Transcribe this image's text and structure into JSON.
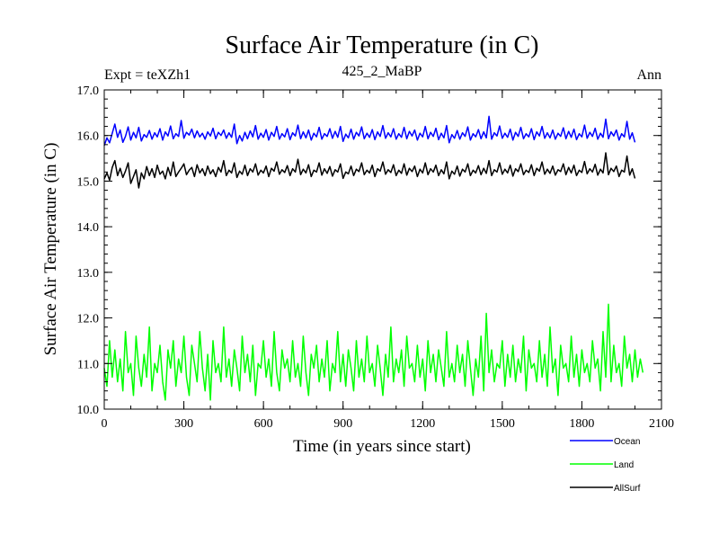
{
  "chart_data": {
    "type": "line",
    "title": "Surface Air Temperature (in C)",
    "subtitle_left": "Expt = teXZh1",
    "subtitle_center": "425_2_MaBP",
    "subtitle_right": "Ann",
    "xlabel": "Time (in years since start)",
    "ylabel": "Surface Air Temperature (in C)",
    "xlim": [
      0,
      2100
    ],
    "ylim": [
      10.0,
      17.0
    ],
    "x_major_ticks": [
      0,
      300,
      600,
      900,
      1200,
      1500,
      1800,
      2100
    ],
    "x_tick_labels": [
      "0",
      "300",
      "600",
      "900",
      "1200",
      "1500",
      "1800",
      "2100"
    ],
    "y_major_ticks": [
      10.0,
      11.0,
      12.0,
      13.0,
      14.0,
      15.0,
      16.0,
      17.0
    ],
    "y_tick_labels": [
      "10.0",
      "11.0",
      "12.0",
      "13.0",
      "14.0",
      "15.0",
      "16.0",
      "17.0"
    ],
    "x_minor_step": 100,
    "y_minor_step": 0.2,
    "grid": false,
    "legend_position": "bottom-right",
    "series": [
      {
        "name": "Ocean",
        "color": "#0000ff",
        "x_start": 0,
        "x_step": 10,
        "values": [
          15.78,
          15.95,
          15.84,
          16.05,
          16.25,
          15.96,
          16.12,
          15.85,
          15.98,
          16.19,
          15.9,
          16.07,
          15.95,
          16.18,
          15.88,
          16.02,
          15.96,
          16.11,
          15.92,
          16.06,
          15.97,
          16.15,
          15.9,
          16.08,
          15.99,
          16.21,
          15.93,
          16.04,
          15.98,
          16.33,
          15.94,
          16.07,
          16.01,
          16.14,
          15.95,
          16.1,
          15.97,
          16.05,
          15.92,
          16.08,
          15.99,
          16.16,
          15.93,
          16.07,
          16.0,
          16.12,
          15.94,
          16.06,
          15.96,
          16.25,
          15.82,
          16.0,
          15.88,
          16.07,
          15.93,
          16.1,
          15.97,
          16.22,
          15.92,
          16.05,
          15.96,
          16.13,
          15.9,
          16.07,
          15.98,
          16.2,
          15.92,
          16.04,
          15.97,
          16.15,
          15.91,
          16.06,
          15.99,
          16.23,
          15.93,
          16.08,
          15.95,
          16.12,
          15.9,
          16.05,
          15.97,
          16.18,
          15.92,
          16.04,
          15.98,
          16.15,
          15.94,
          16.09,
          15.96,
          16.2,
          15.87,
          16.03,
          15.95,
          16.14,
          15.92,
          16.07,
          15.99,
          16.19,
          15.93,
          16.05,
          15.96,
          16.13,
          15.91,
          16.08,
          15.98,
          16.22,
          15.94,
          16.06,
          15.97,
          16.15,
          15.92,
          16.04,
          15.96,
          16.18,
          15.93,
          16.09,
          15.99,
          16.12,
          15.9,
          16.05,
          15.97,
          16.2,
          15.93,
          16.07,
          15.98,
          16.16,
          15.91,
          16.05,
          15.95,
          16.22,
          15.84,
          16.02,
          15.94,
          16.11,
          15.92,
          16.06,
          15.98,
          16.19,
          15.9,
          16.04,
          15.97,
          16.13,
          15.93,
          16.08,
          15.95,
          16.42,
          15.92,
          16.06,
          15.99,
          16.21,
          15.94,
          16.05,
          15.96,
          16.14,
          15.9,
          16.07,
          15.98,
          16.18,
          15.93,
          16.04,
          15.97,
          16.15,
          15.91,
          16.08,
          15.99,
          16.2,
          15.94,
          16.06,
          15.95,
          16.12,
          15.92,
          16.05,
          15.98,
          16.17,
          15.93,
          16.09,
          15.96,
          16.14,
          15.91,
          16.04,
          15.97,
          16.23,
          15.94,
          16.07,
          15.98,
          16.16,
          15.92,
          16.05,
          15.96,
          16.36,
          15.93,
          16.08,
          15.99,
          16.12,
          15.9,
          16.04,
          15.97,
          16.31,
          15.92,
          16.06,
          15.85
        ]
      },
      {
        "name": "Land",
        "color": "#00ff00",
        "x_start": 0,
        "x_step": 10,
        "values": [
          10.9,
          10.5,
          11.5,
          10.7,
          11.3,
          10.6,
          11.1,
          10.4,
          11.7,
          10.8,
          11.0,
          10.3,
          11.6,
          10.9,
          10.5,
          11.2,
          10.7,
          11.8,
          10.4,
          11.0,
          10.8,
          11.4,
          10.6,
          10.2,
          11.3,
          10.9,
          11.5,
          10.5,
          11.1,
          10.8,
          11.6,
          10.7,
          10.3,
          11.4,
          11.0,
          10.6,
          11.7,
          10.9,
          10.4,
          11.2,
          10.2,
          11.5,
          10.8,
          11.0,
          10.6,
          11.8,
          10.7,
          11.1,
          10.5,
          11.3,
          10.9,
          10.4,
          11.6,
          10.8,
          11.2,
          10.6,
          11.4,
          10.3,
          11.0,
          10.9,
          11.5,
          10.7,
          11.1,
          10.5,
          11.7,
          10.8,
          10.4,
          11.3,
          10.9,
          11.1,
          10.6,
          11.5,
          10.7,
          11.0,
          10.5,
          11.6,
          10.8,
          10.3,
          11.2,
          10.9,
          11.4,
          10.6,
          11.1,
          10.7,
          11.5,
          10.4,
          11.0,
          10.8,
          11.7,
          10.6,
          11.2,
          10.5,
          11.3,
          10.9,
          10.4,
          11.5,
          10.7,
          11.1,
          10.6,
          11.6,
          10.8,
          11.0,
          10.5,
          11.4,
          10.9,
          10.3,
          11.2,
          10.7,
          11.8,
          10.6,
          11.1,
          10.8,
          11.3,
          10.5,
          11.6,
          10.9,
          11.0,
          10.6,
          11.4,
          10.7,
          11.1,
          10.4,
          11.5,
          10.8,
          11.2,
          10.6,
          11.3,
          10.9,
          10.5,
          11.7,
          10.7,
          11.0,
          10.6,
          11.4,
          10.8,
          11.2,
          10.5,
          11.5,
          10.9,
          10.3,
          11.1,
          10.7,
          11.6,
          10.4,
          12.1,
          10.8,
          11.3,
          10.6,
          11.0,
          10.9,
          11.5,
          10.5,
          11.2,
          10.7,
          11.4,
          10.6,
          11.1,
          10.8,
          11.6,
          10.4,
          11.3,
          10.9,
          11.0,
          10.6,
          11.5,
          10.7,
          11.2,
          10.5,
          11.8,
          10.8,
          11.1,
          10.3,
          11.4,
          10.9,
          11.0,
          10.6,
          11.6,
          10.7,
          11.2,
          10.5,
          11.3,
          10.8,
          11.0,
          10.6,
          11.5,
          10.9,
          11.1,
          10.4,
          11.7,
          10.7,
          12.3,
          10.6,
          11.4,
          10.8,
          11.0,
          10.5,
          11.6,
          10.9,
          11.2,
          10.6,
          11.3,
          10.7,
          11.1,
          10.8
        ]
      },
      {
        "name": "AllSurf",
        "color": "#000000",
        "x_start": 0,
        "x_step": 10,
        "values": [
          15.05,
          15.18,
          15.02,
          15.3,
          15.45,
          15.12,
          15.28,
          15.08,
          15.22,
          15.4,
          14.95,
          15.1,
          15.25,
          14.85,
          15.18,
          15.05,
          15.32,
          15.12,
          15.27,
          15.08,
          15.35,
          15.15,
          15.22,
          15.05,
          15.3,
          15.12,
          15.42,
          15.1,
          15.2,
          15.28,
          15.38,
          15.14,
          15.24,
          15.3,
          15.1,
          15.36,
          15.18,
          15.27,
          15.12,
          15.33,
          15.16,
          15.25,
          15.1,
          15.3,
          15.2,
          15.45,
          15.12,
          15.24,
          15.18,
          15.4,
          15.08,
          15.22,
          15.15,
          15.35,
          15.12,
          15.27,
          15.2,
          15.38,
          15.13,
          15.24,
          15.18,
          15.33,
          15.1,
          15.28,
          15.22,
          15.42,
          15.15,
          15.25,
          15.19,
          15.34,
          15.12,
          15.27,
          15.2,
          15.48,
          15.14,
          15.26,
          15.18,
          15.36,
          15.1,
          15.24,
          15.2,
          15.4,
          15.13,
          15.27,
          15.17,
          15.32,
          15.11,
          15.25,
          15.2,
          15.38,
          15.06,
          15.2,
          15.16,
          15.33,
          15.12,
          15.26,
          15.21,
          15.4,
          15.14,
          15.24,
          15.18,
          15.35,
          15.1,
          15.27,
          15.22,
          15.42,
          15.15,
          15.25,
          15.19,
          15.36,
          15.12,
          15.24,
          15.17,
          15.38,
          15.13,
          15.28,
          15.21,
          15.33,
          15.1,
          15.26,
          15.18,
          15.4,
          15.14,
          15.27,
          15.2,
          15.35,
          15.12,
          15.25,
          15.16,
          15.42,
          15.05,
          15.22,
          15.15,
          15.33,
          15.11,
          15.26,
          15.2,
          15.38,
          15.12,
          15.24,
          15.18,
          15.34,
          15.14,
          15.28,
          15.17,
          15.45,
          15.12,
          15.25,
          15.2,
          15.4,
          15.15,
          15.26,
          15.18,
          15.35,
          15.11,
          15.27,
          15.21,
          15.38,
          15.14,
          15.24,
          15.19,
          15.36,
          15.12,
          15.28,
          15.22,
          15.42,
          15.15,
          15.26,
          15.17,
          15.33,
          15.13,
          15.25,
          15.21,
          15.38,
          15.14,
          15.3,
          15.18,
          15.35,
          15.12,
          15.24,
          15.19,
          15.43,
          15.16,
          15.27,
          15.2,
          15.37,
          15.13,
          15.26,
          15.18,
          15.62,
          15.14,
          15.28,
          15.21,
          15.33,
          15.1,
          15.24,
          15.2,
          15.55,
          15.13,
          15.27,
          15.06
        ]
      }
    ]
  }
}
